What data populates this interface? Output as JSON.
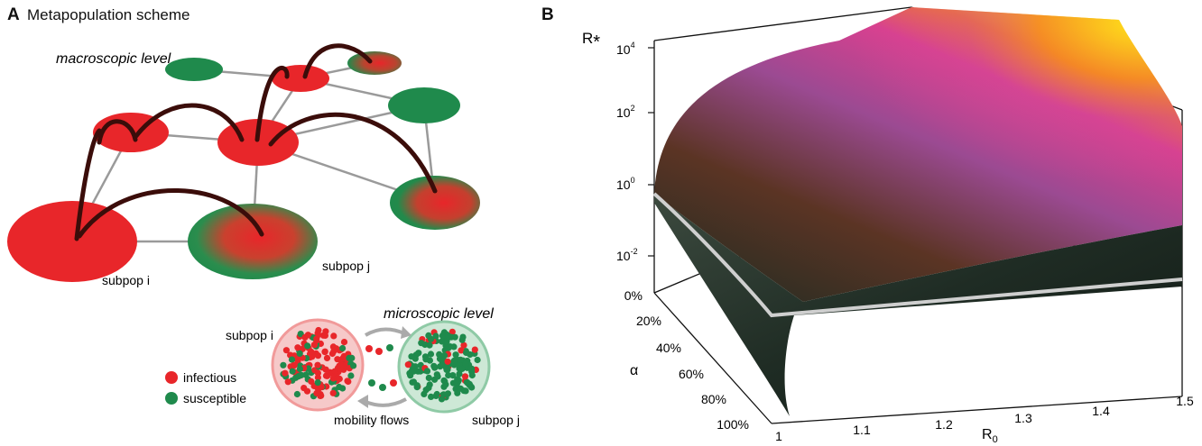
{
  "panel_a": {
    "letter": "A",
    "title": "Metapopulation scheme",
    "macro_label": "macroscopic level",
    "micro_label": "microscopic level",
    "subpop_i": "subpop i",
    "subpop_j": "subpop j",
    "legend": {
      "infectious": "infectious",
      "susceptible": "susceptible"
    },
    "mobility_label": "mobility flows",
    "colors": {
      "infectious": "#e8262a",
      "susceptible": "#1f8a4c",
      "arc": "#3b0d0a"
    }
  },
  "panel_b": {
    "letter": "B",
    "z_label": "R",
    "z_label_sub": "*",
    "z_ticks": [
      {
        "base": "10",
        "exp": "4"
      },
      {
        "base": "10",
        "exp": "2"
      },
      {
        "base": "10",
        "exp": "0"
      },
      {
        "base": "10",
        "exp": "-2"
      }
    ],
    "alpha_label": "α",
    "alpha_ticks": [
      "0%",
      "20%",
      "40%",
      "60%",
      "80%",
      "100%"
    ],
    "x_label": "R",
    "x_label_sub": "0",
    "x_ticks": [
      "1",
      "1.1",
      "1.2",
      "1.3",
      "1.4",
      "1.5"
    ]
  }
}
